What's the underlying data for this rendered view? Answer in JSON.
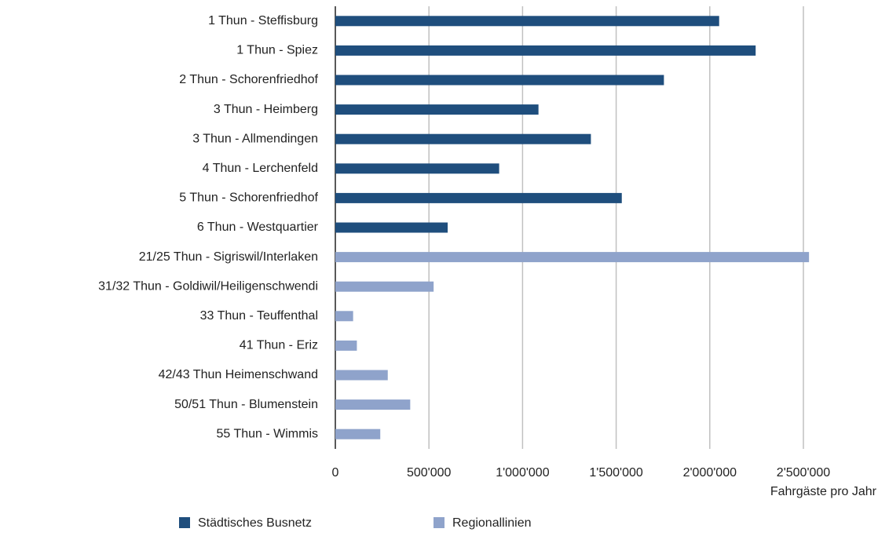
{
  "chart_data": {
    "type": "bar",
    "orientation": "horizontal",
    "x_label": "Fahrgäste pro Jahr",
    "categories": [
      "1 Thun - Steffisburg",
      "1 Thun - Spiez",
      "2 Thun - Schorenfriedhof",
      "3 Thun - Heimberg",
      "3 Thun - Allmendingen",
      "4 Thun - Lerchenfeld",
      "5 Thun - Schorenfriedhof",
      "6 Thun - Westquartier",
      "21/25 Thun - Sigriswil/Interlaken",
      "31/32 Thun - Goldiwil/Heiligenschwendi",
      "33 Thun - Teuffenthal",
      "41 Thun - Eriz",
      "42/43 Thun Heimenschwand",
      "50/51 Thun - Blumenstein",
      "55 Thun - Wimmis"
    ],
    "series": [
      {
        "name": "Städtisches Busnetz",
        "color": "#1f4e7d",
        "values": [
          2050000,
          2245000,
          1755000,
          1085000,
          1365000,
          875000,
          1530000,
          600000,
          null,
          null,
          null,
          null,
          null,
          null,
          null
        ]
      },
      {
        "name": "Regionallinien",
        "color": "#8fa3cb",
        "values": [
          null,
          null,
          null,
          null,
          null,
          null,
          null,
          null,
          2530000,
          525000,
          95000,
          115000,
          280000,
          400000,
          240000
        ]
      }
    ],
    "xlim": [
      0,
      2500000
    ],
    "xticks": [
      0,
      {
        "value": 500000,
        "label": "500'000"
      },
      {
        "value": 1000000,
        "label": "1'000'000"
      },
      {
        "value": 1500000,
        "label": "1'500'000"
      },
      {
        "value": 2000000,
        "label": "2'000'000"
      },
      {
        "value": 2500000,
        "label": "2'500'000"
      }
    ],
    "grid": true,
    "legend": "bottom"
  }
}
